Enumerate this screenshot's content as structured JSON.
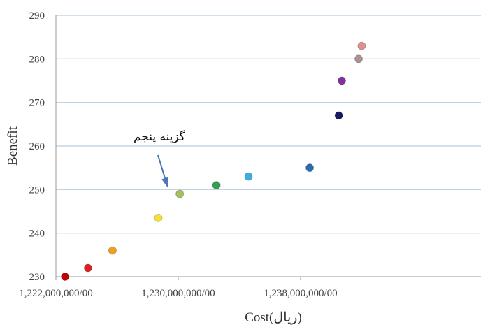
{
  "chart_data": {
    "type": "scatter",
    "xlabel": "Cost(ریال)",
    "ylabel": "Benefit",
    "xlim": [
      1222000000,
      1249800000
    ],
    "ylim": [
      230,
      290
    ],
    "x_ticks": [
      {
        "value": 1222000000,
        "label": "1,222,000,000/00"
      },
      {
        "value": 1230000000,
        "label": "1,230,000,000/00"
      },
      {
        "value": 1238000000,
        "label": "1,238,000,000/00"
      }
    ],
    "y_ticks": [
      230,
      240,
      250,
      260,
      270,
      280,
      290
    ],
    "grid": "horizontal",
    "points": [
      {
        "x": 1222600000,
        "y": 230,
        "color": "#c00000"
      },
      {
        "x": 1224100000,
        "y": 232,
        "color": "#e02020"
      },
      {
        "x": 1225700000,
        "y": 236,
        "color": "#f0a020"
      },
      {
        "x": 1228700000,
        "y": 243.5,
        "color": "#f8e030"
      },
      {
        "x": 1230100000,
        "y": 249,
        "color": "#a8c060"
      },
      {
        "x": 1232500000,
        "y": 251,
        "color": "#30a050"
      },
      {
        "x": 1234600000,
        "y": 253,
        "color": "#3aaee0"
      },
      {
        "x": 1238600000,
        "y": 255,
        "color": "#2a6cb0"
      },
      {
        "x": 1240500000,
        "y": 267,
        "color": "#1a1a60"
      },
      {
        "x": 1240700000,
        "y": 275,
        "color": "#8030a0"
      },
      {
        "x": 1241800000,
        "y": 280,
        "color": "#b09090"
      },
      {
        "x": 1242000000,
        "y": 283,
        "color": "#e09090"
      }
    ],
    "annotations": [
      {
        "text": "گزینه پنجم",
        "points_to_index": 4
      }
    ]
  }
}
